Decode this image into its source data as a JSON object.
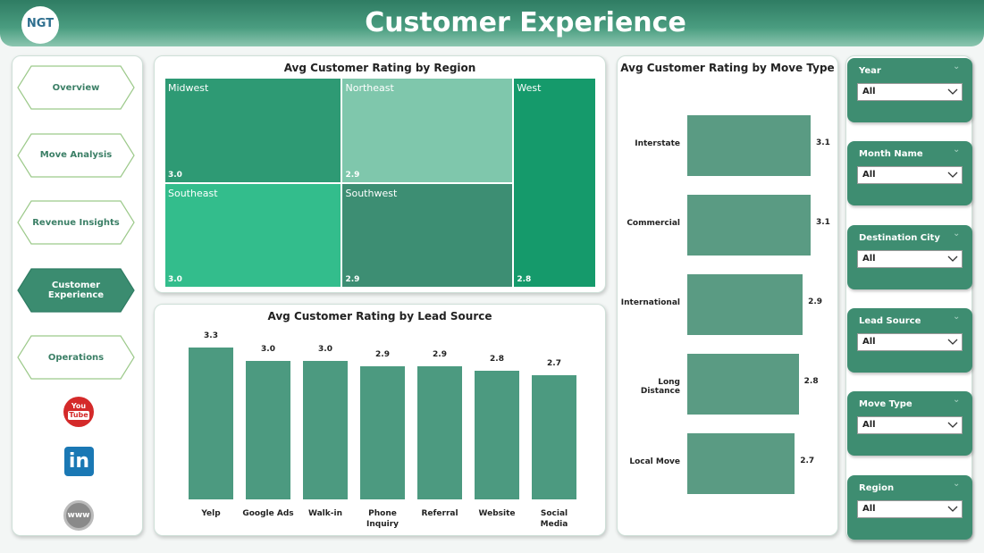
{
  "header": {
    "logo": "NGT",
    "title": "Customer Experience"
  },
  "nav": {
    "items": [
      "Overview",
      "Move Analysis",
      "Revenue Insights",
      "Customer Experience",
      "Operations"
    ],
    "active": 3
  },
  "social": {
    "youtube": [
      "You",
      "Tube"
    ],
    "linkedin": "in",
    "web": "www"
  },
  "filters": [
    {
      "label": "Year",
      "value": "All"
    },
    {
      "label": "Month Name",
      "value": "All"
    },
    {
      "label": "Destination City",
      "value": "All"
    },
    {
      "label": "Lead Source",
      "value": "All"
    },
    {
      "label": "Move Type",
      "value": "All"
    },
    {
      "label": "Region",
      "value": "All"
    }
  ],
  "chart_data": [
    {
      "type": "treemap",
      "title": "Avg Customer Rating by Region",
      "categories": [
        "Midwest",
        "Northeast",
        "West",
        "Southeast",
        "Southwest"
      ],
      "values": [
        3.0,
        2.9,
        2.8,
        3.0,
        2.9
      ],
      "value_labels": [
        "3.0",
        "2.9",
        "2.8",
        "3.0",
        "2.9"
      ],
      "colors": [
        "#2e9a74",
        "#7fc7ac",
        "#159a6b",
        "#33bd8c",
        "#3d8e73"
      ]
    },
    {
      "type": "bar",
      "title": "Avg Customer Rating by Lead Source",
      "categories": [
        "Yelp",
        "Google Ads",
        "Walk-in",
        "Phone Inquiry",
        "Referral",
        "Website",
        "Social Media"
      ],
      "values": [
        3.3,
        3.0,
        3.0,
        2.9,
        2.9,
        2.8,
        2.7
      ],
      "value_labels": [
        "3.3",
        "3.0",
        "3.0",
        "2.9",
        "2.9",
        "2.8",
        "2.7"
      ],
      "color": "#4c9a80"
    },
    {
      "type": "hbar",
      "title": "Avg Customer Rating by Move Type",
      "categories": [
        "Interstate",
        "Commercial",
        "International",
        "Long Distance",
        "Local Move"
      ],
      "values": [
        3.1,
        3.1,
        2.9,
        2.8,
        2.7
      ],
      "color": "#5a9b83"
    }
  ]
}
